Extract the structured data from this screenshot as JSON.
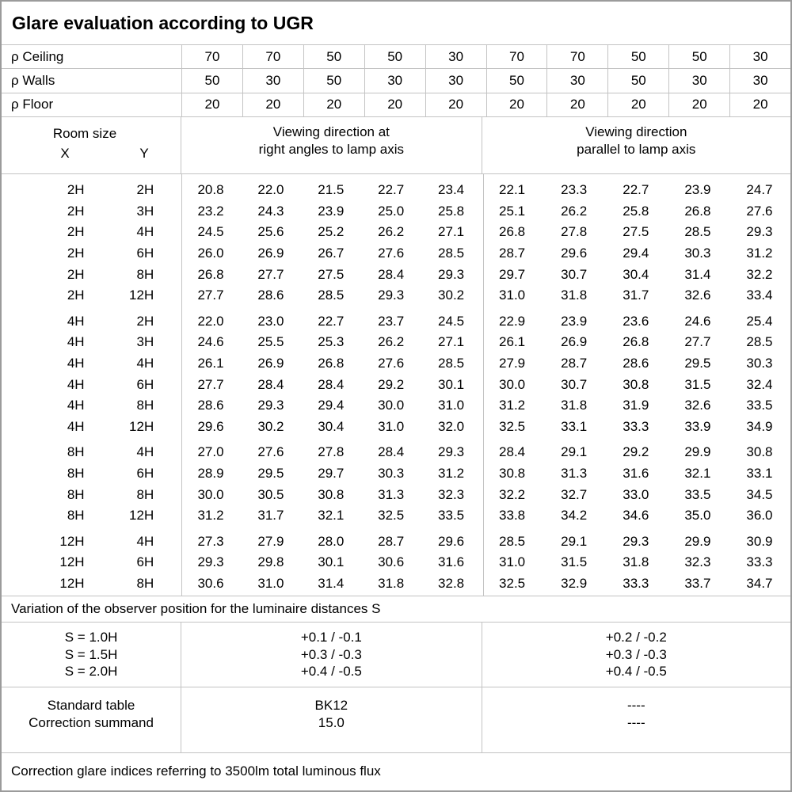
{
  "title": "Glare evaluation according to UGR",
  "reflectance_rows": [
    {
      "label": "ρ Ceiling",
      "values": [
        "70",
        "70",
        "50",
        "50",
        "30",
        "70",
        "70",
        "50",
        "50",
        "30"
      ]
    },
    {
      "label": "ρ Walls",
      "values": [
        "50",
        "30",
        "50",
        "30",
        "30",
        "50",
        "30",
        "50",
        "30",
        "30"
      ]
    },
    {
      "label": "ρ Floor",
      "values": [
        "20",
        "20",
        "20",
        "20",
        "20",
        "20",
        "20",
        "20",
        "20",
        "20"
      ]
    }
  ],
  "header": {
    "room_size_label": "Room size",
    "x_label": "X",
    "y_label": "Y",
    "group1": "Viewing direction at\nright angles to lamp axis",
    "group2": "Viewing direction\nparallel to lamp axis"
  },
  "ugr_groups": [
    {
      "rows": [
        {
          "x": "2H",
          "y": "2H",
          "right_angle": [
            "20.8",
            "22.0",
            "21.5",
            "22.7",
            "23.4"
          ],
          "parallel": [
            "22.1",
            "23.3",
            "22.7",
            "23.9",
            "24.7"
          ]
        },
        {
          "x": "2H",
          "y": "3H",
          "right_angle": [
            "23.2",
            "24.3",
            "23.9",
            "25.0",
            "25.8"
          ],
          "parallel": [
            "25.1",
            "26.2",
            "25.8",
            "26.8",
            "27.6"
          ]
        },
        {
          "x": "2H",
          "y": "4H",
          "right_angle": [
            "24.5",
            "25.6",
            "25.2",
            "26.2",
            "27.1"
          ],
          "parallel": [
            "26.8",
            "27.8",
            "27.5",
            "28.5",
            "29.3"
          ]
        },
        {
          "x": "2H",
          "y": "6H",
          "right_angle": [
            "26.0",
            "26.9",
            "26.7",
            "27.6",
            "28.5"
          ],
          "parallel": [
            "28.7",
            "29.6",
            "29.4",
            "30.3",
            "31.2"
          ]
        },
        {
          "x": "2H",
          "y": "8H",
          "right_angle": [
            "26.8",
            "27.7",
            "27.5",
            "28.4",
            "29.3"
          ],
          "parallel": [
            "29.7",
            "30.7",
            "30.4",
            "31.4",
            "32.2"
          ]
        },
        {
          "x": "2H",
          "y": "12H",
          "right_angle": [
            "27.7",
            "28.6",
            "28.5",
            "29.3",
            "30.2"
          ],
          "parallel": [
            "31.0",
            "31.8",
            "31.7",
            "32.6",
            "33.4"
          ]
        }
      ]
    },
    {
      "rows": [
        {
          "x": "4H",
          "y": "2H",
          "right_angle": [
            "22.0",
            "23.0",
            "22.7",
            "23.7",
            "24.5"
          ],
          "parallel": [
            "22.9",
            "23.9",
            "23.6",
            "24.6",
            "25.4"
          ]
        },
        {
          "x": "4H",
          "y": "3H",
          "right_angle": [
            "24.6",
            "25.5",
            "25.3",
            "26.2",
            "27.1"
          ],
          "parallel": [
            "26.1",
            "26.9",
            "26.8",
            "27.7",
            "28.5"
          ]
        },
        {
          "x": "4H",
          "y": "4H",
          "right_angle": [
            "26.1",
            "26.9",
            "26.8",
            "27.6",
            "28.5"
          ],
          "parallel": [
            "27.9",
            "28.7",
            "28.6",
            "29.5",
            "30.3"
          ]
        },
        {
          "x": "4H",
          "y": "6H",
          "right_angle": [
            "27.7",
            "28.4",
            "28.4",
            "29.2",
            "30.1"
          ],
          "parallel": [
            "30.0",
            "30.7",
            "30.8",
            "31.5",
            "32.4"
          ]
        },
        {
          "x": "4H",
          "y": "8H",
          "right_angle": [
            "28.6",
            "29.3",
            "29.4",
            "30.0",
            "31.0"
          ],
          "parallel": [
            "31.2",
            "31.8",
            "31.9",
            "32.6",
            "33.5"
          ]
        },
        {
          "x": "4H",
          "y": "12H",
          "right_angle": [
            "29.6",
            "30.2",
            "30.4",
            "31.0",
            "32.0"
          ],
          "parallel": [
            "32.5",
            "33.1",
            "33.3",
            "33.9",
            "34.9"
          ]
        }
      ]
    },
    {
      "rows": [
        {
          "x": "8H",
          "y": "4H",
          "right_angle": [
            "27.0",
            "27.6",
            "27.8",
            "28.4",
            "29.3"
          ],
          "parallel": [
            "28.4",
            "29.1",
            "29.2",
            "29.9",
            "30.8"
          ]
        },
        {
          "x": "8H",
          "y": "6H",
          "right_angle": [
            "28.9",
            "29.5",
            "29.7",
            "30.3",
            "31.2"
          ],
          "parallel": [
            "30.8",
            "31.3",
            "31.6",
            "32.1",
            "33.1"
          ]
        },
        {
          "x": "8H",
          "y": "8H",
          "right_angle": [
            "30.0",
            "30.5",
            "30.8",
            "31.3",
            "32.3"
          ],
          "parallel": [
            "32.2",
            "32.7",
            "33.0",
            "33.5",
            "34.5"
          ]
        },
        {
          "x": "8H",
          "y": "12H",
          "right_angle": [
            "31.2",
            "31.7",
            "32.1",
            "32.5",
            "33.5"
          ],
          "parallel": [
            "33.8",
            "34.2",
            "34.6",
            "35.0",
            "36.0"
          ]
        }
      ]
    },
    {
      "rows": [
        {
          "x": "12H",
          "y": "4H",
          "right_angle": [
            "27.3",
            "27.9",
            "28.0",
            "28.7",
            "29.6"
          ],
          "parallel": [
            "28.5",
            "29.1",
            "29.3",
            "29.9",
            "30.9"
          ]
        },
        {
          "x": "12H",
          "y": "6H",
          "right_angle": [
            "29.3",
            "29.8",
            "30.1",
            "30.6",
            "31.6"
          ],
          "parallel": [
            "31.0",
            "31.5",
            "31.8",
            "32.3",
            "33.3"
          ]
        },
        {
          "x": "12H",
          "y": "8H",
          "right_angle": [
            "30.6",
            "31.0",
            "31.4",
            "31.8",
            "32.8"
          ],
          "parallel": [
            "32.5",
            "32.9",
            "33.3",
            "33.7",
            "34.7"
          ]
        }
      ]
    }
  ],
  "variation_note": "Variation of the observer position for the luminaire distances S",
  "variation_rows": [
    {
      "label": "S = 1.0H",
      "right_angle": "+0.1 / -0.1",
      "parallel": "+0.2 / -0.2"
    },
    {
      "label": "S = 1.5H",
      "right_angle": "+0.3 / -0.3",
      "parallel": "+0.3 / -0.3"
    },
    {
      "label": "S = 2.0H",
      "right_angle": "+0.4 / -0.5",
      "parallel": "+0.4 / -0.5"
    }
  ],
  "summary_rows": [
    {
      "label": "Standard table",
      "right_angle": "BK12",
      "parallel": "----"
    },
    {
      "label": "Correction summand",
      "right_angle": "15.0",
      "parallel": "----"
    }
  ],
  "footer_note": "Correction glare indices referring to 3500lm total luminous flux"
}
